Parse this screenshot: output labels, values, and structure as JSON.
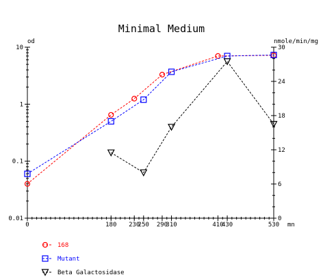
{
  "chart_data": {
    "type": "line",
    "title": "Minimal Medium",
    "left_axis_label": "od",
    "right_axis_label": "nmole/min/mg",
    "x_unit": "mn",
    "x_ticks": [
      "0",
      "180",
      "230",
      "250",
      "290",
      "310",
      "410",
      "430",
      "530"
    ],
    "xlim": [
      0,
      530
    ],
    "left_ticks": [
      "10",
      "1",
      "0.1",
      "0.01"
    ],
    "left_ylim": [
      0.01,
      10
    ],
    "left_scale": "log",
    "right_ticks": [
      "30",
      "24",
      "18",
      "12",
      "6",
      "0"
    ],
    "right_ylim": [
      0,
      30
    ],
    "legend_position": "bottom-left",
    "series": [
      {
        "name": "168",
        "axis": "left",
        "color": "#ff0000",
        "marker": "circle",
        "x": [
          0,
          180,
          230,
          290,
          410,
          530
        ],
        "y": [
          0.04,
          0.65,
          1.25,
          3.3,
          7.0,
          7.2
        ]
      },
      {
        "name": "Mutant",
        "axis": "left",
        "color": "#0000ff",
        "marker": "square",
        "x": [
          0,
          180,
          250,
          310,
          430,
          530
        ],
        "y": [
          0.06,
          0.5,
          1.2,
          3.7,
          7.0,
          7.3
        ]
      },
      {
        "name": "Beta Galactosidase",
        "axis": "right",
        "color": "#000000",
        "marker": "triangle-down",
        "x": [
          180,
          250,
          310,
          430,
          530
        ],
        "y": [
          11.5,
          8.0,
          16.0,
          27.5,
          16.5
        ]
      }
    ]
  }
}
